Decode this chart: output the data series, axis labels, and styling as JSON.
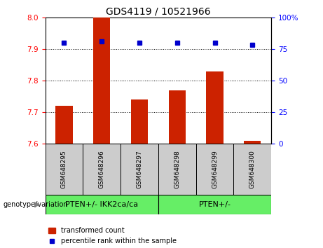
{
  "title": "GDS4119 / 10521966",
  "samples": [
    "GSM648295",
    "GSM648296",
    "GSM648297",
    "GSM648298",
    "GSM648299",
    "GSM648300"
  ],
  "transformed_counts": [
    7.72,
    8.0,
    7.74,
    7.77,
    7.83,
    7.61
  ],
  "percentile_ranks": [
    80,
    81,
    80,
    80,
    80,
    78
  ],
  "bar_baseline": 7.6,
  "ylim_left": [
    7.6,
    8.0
  ],
  "ylim_right": [
    0,
    100
  ],
  "yticks_left": [
    7.6,
    7.7,
    7.8,
    7.9,
    8.0
  ],
  "yticks_right": [
    0,
    25,
    50,
    75,
    100
  ],
  "bar_color": "#cc2200",
  "dot_color": "#0000cc",
  "group1_label": "PTEN+/- IKK2ca/ca",
  "group2_label": "PTEN+/-",
  "group1_samples": [
    0,
    1,
    2
  ],
  "group2_samples": [
    3,
    4,
    5
  ],
  "group_color": "#66ee66",
  "sample_bg_color": "#cccccc",
  "genotype_label": "genotype/variation",
  "legend_bar_label": "transformed count",
  "legend_dot_label": "percentile rank within the sample",
  "title_fontsize": 10,
  "tick_fontsize": 7.5,
  "sample_fontsize": 6.5,
  "group_fontsize": 8,
  "legend_fontsize": 7
}
